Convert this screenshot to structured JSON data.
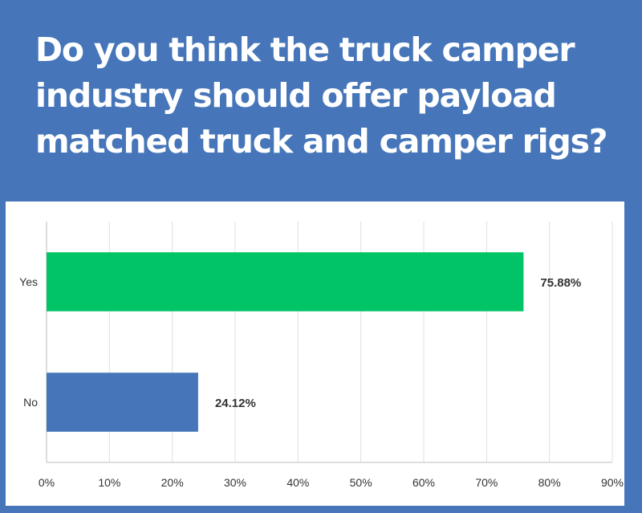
{
  "question": "Do you think the truck camper industry should offer payload matched truck and camper rigs?",
  "colors": {
    "background": "#4676b9",
    "panel": "#ffffff",
    "yes_bar": "#00c465",
    "no_bar": "#4676b9",
    "grid": "#e0e0e0",
    "text": "#333333"
  },
  "chart_data": {
    "type": "bar",
    "orientation": "horizontal",
    "categories": [
      "Yes",
      "No"
    ],
    "values": [
      75.88,
      24.12
    ],
    "data_labels": [
      "75.88%",
      "24.12%"
    ],
    "bar_colors": [
      "#00c465",
      "#4676b9"
    ],
    "xlim": [
      0,
      90
    ],
    "x_ticks": [
      0,
      10,
      20,
      30,
      40,
      50,
      60,
      70,
      80,
      90
    ],
    "x_tick_labels": [
      "0%",
      "10%",
      "20%",
      "30%",
      "40%",
      "50%",
      "60%",
      "70%",
      "80%",
      "90%"
    ],
    "grid": true
  }
}
